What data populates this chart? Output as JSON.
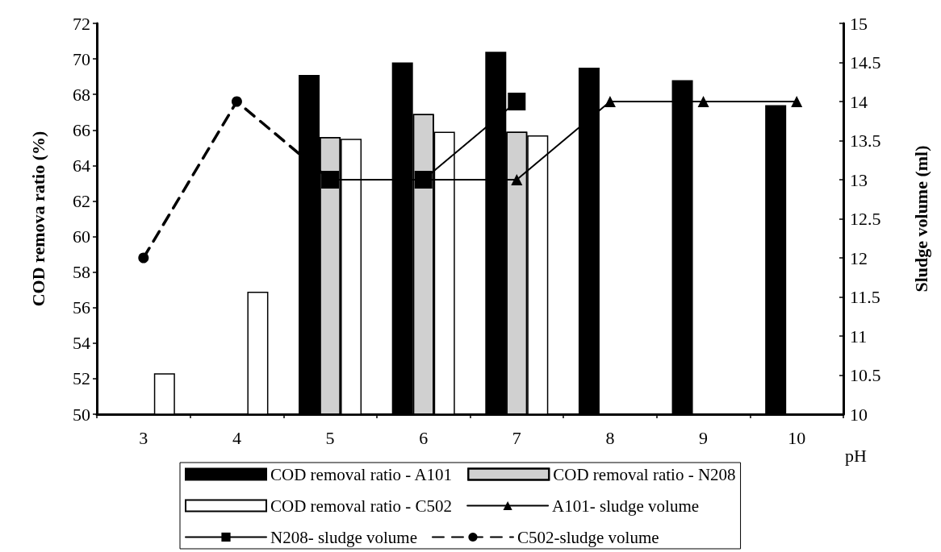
{
  "chart_data": {
    "type": "bar",
    "xlabel": "pH",
    "ylabel": "COD remova ratio (%)",
    "y2label": "Sludge volume (ml)",
    "categories": [
      "3",
      "4",
      "5",
      "6",
      "7",
      "8",
      "9",
      "10"
    ],
    "series": [
      {
        "name": "COD removal ratio - A101",
        "color": "#000000",
        "values": [
          null,
          null,
          69.1,
          69.8,
          70.4,
          69.5,
          68.8,
          67.4
        ]
      },
      {
        "name": "COD removal ratio - N208",
        "color": "#d0d0d0",
        "values": [
          null,
          null,
          65.6,
          66.9,
          65.9,
          null,
          null,
          null
        ]
      },
      {
        "name": "COD removal ratio - C502",
        "color": "#ffffff",
        "values": [
          52.3,
          56.9,
          65.5,
          65.9,
          65.7,
          null,
          null,
          null
        ]
      },
      {
        "name": "A101- sludge volume",
        "type": "line",
        "axis": "y2",
        "color": "#000000",
        "marker": "triangle",
        "line_style": "solid",
        "values": [
          null,
          null,
          null,
          13,
          13,
          14,
          14,
          14
        ]
      },
      {
        "name": "N208- sludge volume",
        "type": "line",
        "axis": "y2",
        "color": "#000000",
        "marker": "square",
        "line_style": "solid",
        "values": [
          null,
          null,
          13,
          13,
          14,
          null,
          null,
          null
        ]
      },
      {
        "name": "C502-sludge volume",
        "type": "line",
        "axis": "y2",
        "color": "#000000",
        "marker": "circle",
        "line_style": "dashed",
        "values": [
          12,
          14,
          13,
          null,
          null,
          null,
          null,
          null
        ]
      }
    ],
    "ylim": [
      50,
      72
    ],
    "yticks": [
      50,
      52,
      54,
      56,
      58,
      60,
      62,
      64,
      66,
      68,
      70,
      72
    ],
    "y2lim": [
      10,
      15
    ],
    "y2ticks": [
      10,
      10.5,
      11,
      11.5,
      12,
      12.5,
      13,
      13.5,
      14,
      14.5,
      15
    ],
    "grid": false,
    "legend": "bottom"
  }
}
